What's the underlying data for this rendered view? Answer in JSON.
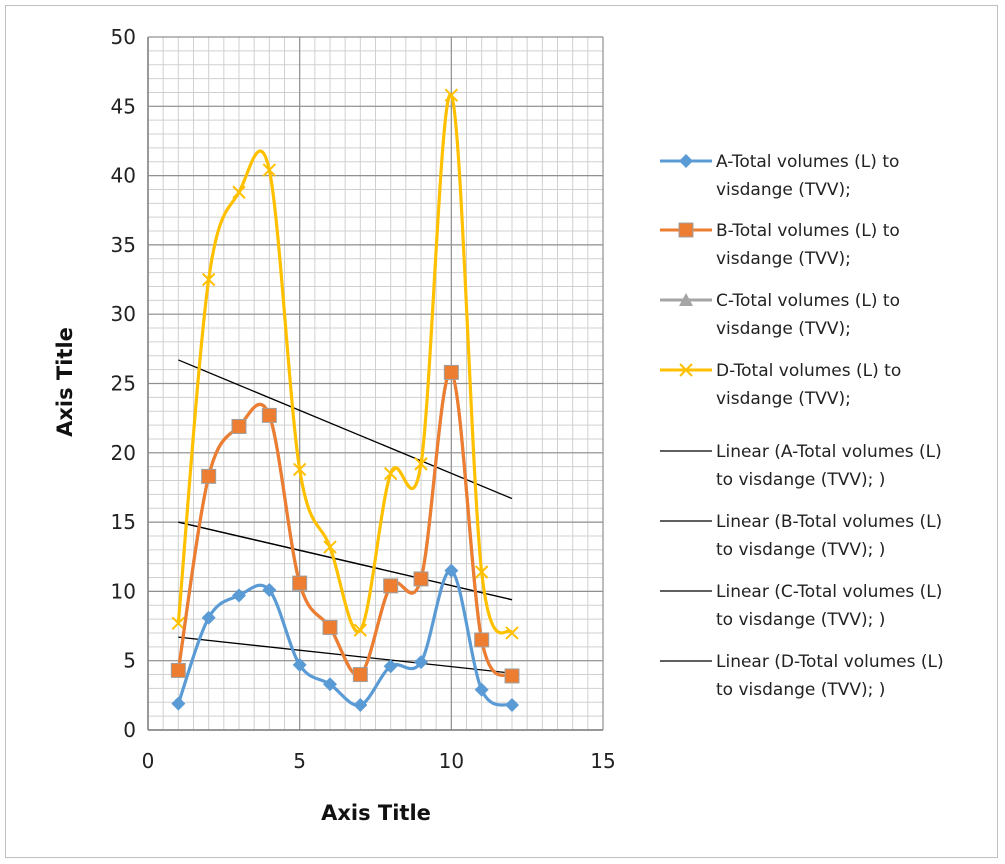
{
  "chart_data": {
    "type": "line",
    "title": "",
    "xlabel": "Axis Title",
    "ylabel": "Axis Title",
    "xlim": [
      0,
      15
    ],
    "ylim": [
      0,
      50
    ],
    "x_ticks": [
      0,
      5,
      10,
      15
    ],
    "y_ticks": [
      0,
      5,
      10,
      15,
      20,
      25,
      30,
      35,
      40,
      45,
      50
    ],
    "grid": true,
    "legend_position": "right",
    "x": [
      1,
      2,
      3,
      4,
      5,
      6,
      7,
      8,
      9,
      10,
      11,
      12
    ],
    "series": [
      {
        "name": "A-Total volumes (L) to visdange (TVV);",
        "legend_lines": [
          "A-Total volumes (L) to",
          "visdange (TVV);"
        ],
        "color": "#5B9BD5",
        "marker": "diamond",
        "values": [
          1.9,
          8.1,
          9.7,
          10.1,
          4.7,
          3.3,
          1.8,
          4.6,
          4.9,
          11.5,
          2.9,
          1.8
        ]
      },
      {
        "name": "B-Total volumes (L) to visdange (TVV);",
        "legend_lines": [
          "B-Total volumes (L) to",
          "visdange (TVV);"
        ],
        "color": "#ED7D31",
        "marker": "square",
        "values": [
          4.3,
          18.3,
          21.9,
          22.7,
          10.6,
          7.4,
          4.0,
          10.4,
          10.9,
          25.8,
          6.5,
          3.9
        ]
      },
      {
        "name": "C-Total volumes (L) to visdange (TVV);",
        "legend_lines": [
          "C-Total volumes (L) to",
          "visdange (TVV);"
        ],
        "color": "#A5A5A5",
        "marker": "triangle",
        "values": [
          4.3,
          18.3,
          21.9,
          22.7,
          10.6,
          7.4,
          4.0,
          10.4,
          10.9,
          25.8,
          6.5,
          3.9
        ]
      },
      {
        "name": "D-Total volumes (L) to visdange (TVV);",
        "legend_lines": [
          "D-Total volumes (L) to",
          "visdange (TVV);"
        ],
        "color": "#FFC000",
        "marker": "x",
        "values": [
          7.7,
          32.5,
          38.8,
          40.4,
          18.8,
          13.2,
          7.2,
          18.5,
          19.2,
          45.8,
          11.4,
          7.0
        ]
      }
    ],
    "trendlines": [
      {
        "name": "Linear (A-Total volumes (L) to visdange (TVV); )",
        "legend_lines": [
          "Linear (A-Total volumes (L)",
          "to visdange (TVV); )"
        ],
        "color": "#000000",
        "x": [
          1,
          12
        ],
        "y": [
          6.7,
          4.1
        ]
      },
      {
        "name": "Linear (B-Total volumes (L) to visdange (TVV); )",
        "legend_lines": [
          "Linear (B-Total volumes (L)",
          "to visdange (TVV); )"
        ],
        "color": "#000000",
        "x": [
          1,
          12
        ],
        "y": [
          15.0,
          9.4
        ]
      },
      {
        "name": "Linear (C-Total volumes (L) to visdange (TVV); )",
        "legend_lines": [
          "Linear (C-Total volumes (L)",
          "to visdange (TVV); )"
        ],
        "color": "#000000",
        "x": [
          1,
          12
        ],
        "y": [
          15.0,
          9.4
        ]
      },
      {
        "name": "Linear (D-Total volumes (L) to visdange (TVV); )",
        "legend_lines": [
          "Linear (D-Total volumes (L)",
          "to visdange (TVV); )"
        ],
        "color": "#000000",
        "x": [
          1,
          12
        ],
        "y": [
          26.7,
          16.7
        ]
      }
    ]
  }
}
